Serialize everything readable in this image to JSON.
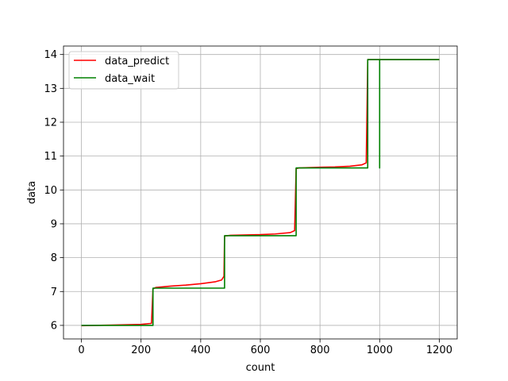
{
  "chart_data": {
    "type": "line",
    "xlabel": "count",
    "ylabel": "data",
    "xlim": [
      -60,
      1260
    ],
    "ylim": [
      5.6,
      14.25
    ],
    "xticks": [
      0,
      200,
      400,
      600,
      800,
      1000,
      1200
    ],
    "yticks": [
      6,
      7,
      8,
      9,
      10,
      11,
      12,
      13,
      14
    ],
    "xtick_labels": [
      "0",
      "200",
      "400",
      "600",
      "800",
      "1000",
      "1200"
    ],
    "ytick_labels": [
      "6",
      "7",
      "8",
      "9",
      "10",
      "11",
      "12",
      "13",
      "14"
    ],
    "grid": true,
    "legend_position": "top-left",
    "series": [
      {
        "name": "data_predict",
        "color": "#ff0000",
        "x": [
          0,
          100,
          200,
          235,
          240,
          250,
          300,
          350,
          400,
          450,
          470,
          478,
          480,
          500,
          600,
          650,
          700,
          715,
          720,
          730,
          800,
          850,
          900,
          940,
          955,
          960,
          1000,
          1200
        ],
        "y": [
          5.99,
          6.01,
          6.03,
          6.06,
          7.08,
          7.12,
          7.16,
          7.19,
          7.23,
          7.29,
          7.34,
          7.45,
          8.64,
          8.66,
          8.68,
          8.7,
          8.74,
          8.8,
          10.63,
          10.65,
          10.67,
          10.68,
          10.7,
          10.74,
          10.8,
          13.85,
          13.85,
          13.85
        ]
      },
      {
        "name": "data_wait",
        "color": "#008000",
        "x": [
          0,
          240,
          240,
          480,
          480,
          720,
          720,
          960,
          960,
          1000,
          1000,
          1000,
          1000,
          1200
        ],
        "y": [
          6.0,
          6.0,
          7.1,
          7.1,
          8.65,
          8.65,
          10.65,
          10.65,
          13.85,
          13.85,
          10.65,
          13.85,
          13.85,
          13.85
        ]
      }
    ]
  }
}
